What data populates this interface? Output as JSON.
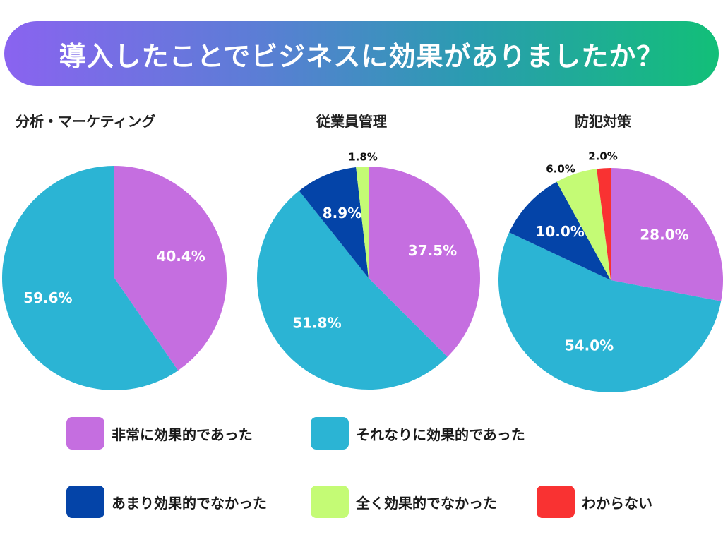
{
  "header": {
    "title": "導入したことでビジネスに効果がありましたか？"
  },
  "colors": {
    "very_effective": "#c56ee0",
    "somewhat_effective": "#2bb4d4",
    "not_very_effective": "#0444a8",
    "not_effective": "#c4fb75",
    "unknown": "#f93232"
  },
  "legend": [
    {
      "key": "very_effective",
      "label": "非常に効果的であった"
    },
    {
      "key": "somewhat_effective",
      "label": "それなりに効果的であった"
    },
    {
      "key": "not_very_effective",
      "label": "あまり効果的でなかった"
    },
    {
      "key": "not_effective",
      "label": "全く効果的でなかった"
    },
    {
      "key": "unknown",
      "label": "わからない"
    }
  ],
  "chart_data": [
    {
      "type": "pie",
      "title": "分析・マーケティング",
      "slices": [
        {
          "key": "very_effective",
          "label": "非常に効果的であった",
          "value": 40.4,
          "display": "40.4%"
        },
        {
          "key": "somewhat_effective",
          "label": "それなりに効果的であった",
          "value": 59.6,
          "display": "59.6%"
        }
      ]
    },
    {
      "type": "pie",
      "title": "従業員管理",
      "slices": [
        {
          "key": "very_effective",
          "label": "非常に効果的であった",
          "value": 37.5,
          "display": "37.5%"
        },
        {
          "key": "somewhat_effective",
          "label": "それなりに効果的であった",
          "value": 51.8,
          "display": "51.8%"
        },
        {
          "key": "not_very_effective",
          "label": "あまり効果的でなかった",
          "value": 8.9,
          "display": "8.9%"
        },
        {
          "key": "not_effective",
          "label": "全く効果的でなかった",
          "value": 1.8,
          "display": "1.8%"
        }
      ]
    },
    {
      "type": "pie",
      "title": "防犯対策",
      "slices": [
        {
          "key": "very_effective",
          "label": "非常に効果的であった",
          "value": 28.0,
          "display": "28.0%"
        },
        {
          "key": "somewhat_effective",
          "label": "それなりに効果的であった",
          "value": 54.0,
          "display": "54.0%"
        },
        {
          "key": "not_very_effective",
          "label": "あまり効果的でなかった",
          "value": 10.0,
          "display": "10.0%"
        },
        {
          "key": "not_effective",
          "label": "全く効果的でなかった",
          "value": 6.0,
          "display": "6.0%"
        },
        {
          "key": "unknown",
          "label": "わからない",
          "value": 2.0,
          "display": "2.0%"
        }
      ]
    }
  ]
}
